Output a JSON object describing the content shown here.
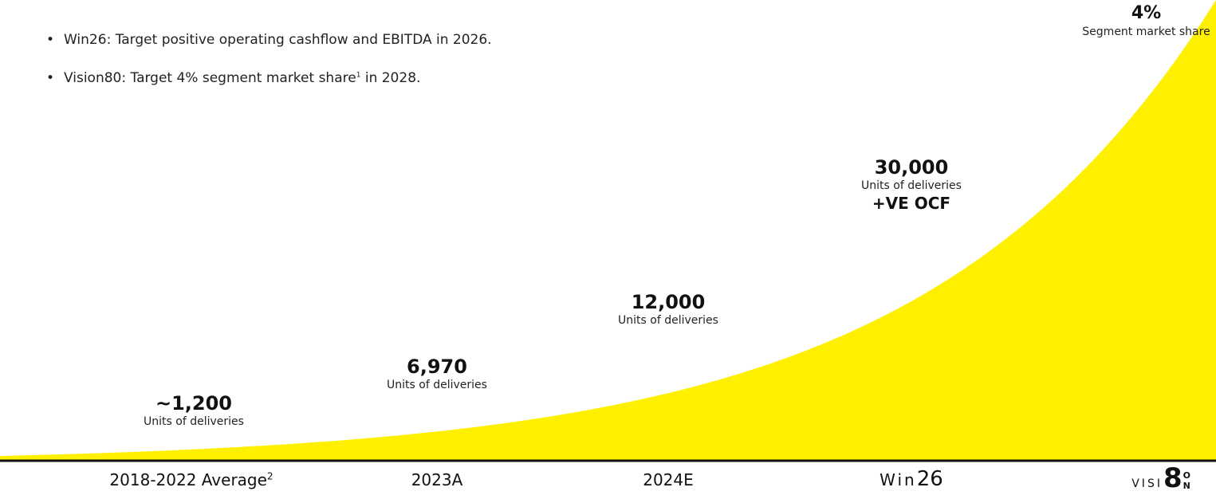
{
  "bullets": [
    {
      "text": "Win26: Target positive operating cashflow and EBITDA in 2026.",
      "sup": ""
    },
    {
      "text": "Vision80: Target 4% segment market share",
      "sup": "1",
      "tail": " in 2028."
    }
  ],
  "chart_data": {
    "type": "area",
    "categories": [
      "2018-2022 Average",
      "2023A",
      "2024E",
      "Win26"
    ],
    "category_footnotes": [
      "2",
      "",
      "",
      ""
    ],
    "values": [
      1200,
      6970,
      12000,
      30000
    ],
    "value_prefixes": [
      "~",
      "",
      "",
      ""
    ],
    "unit_caption": "Units of deliveries",
    "extra_annotations": [
      {
        "category": "Win26",
        "text": "+VE OCF"
      }
    ],
    "end_annotation": {
      "value": "4%",
      "caption": "Segment market share"
    },
    "fill_color": "#FFF000",
    "axis_color": "#111111",
    "title": "",
    "xlabel": "",
    "ylabel": ""
  },
  "labels": {
    "v0": "~1,200",
    "v1": "6,970",
    "v2": "12,000",
    "v3": "30,000",
    "cap": "Units of deliveries",
    "ocf": "+VE OCF",
    "share_value": "4%",
    "share_cap": "Segment market share",
    "x0": "2018-2022 Average",
    "x0_sup": "2",
    "x1": "2023A",
    "x2": "2024E",
    "x3_prefix": "Win",
    "x3_year": "26"
  },
  "logo": {
    "visi": "VISI",
    "eight": "8",
    "o": "O",
    "n": "N"
  }
}
